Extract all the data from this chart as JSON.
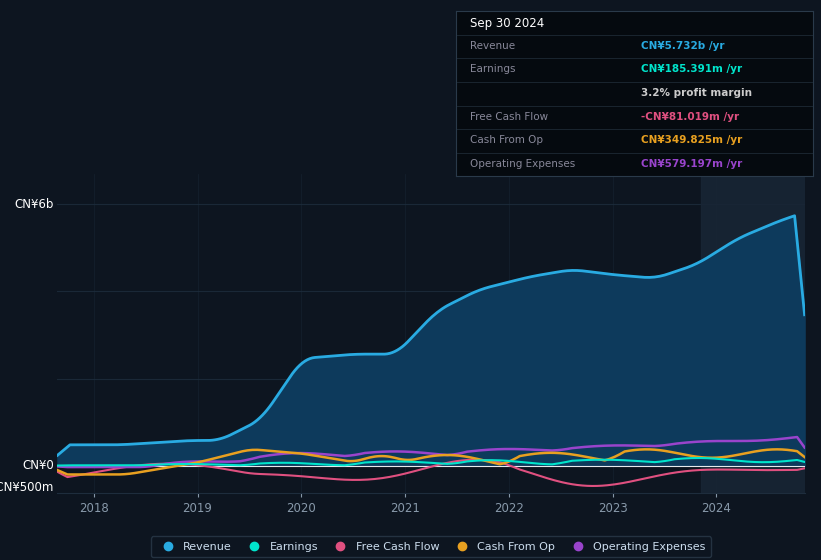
{
  "background_color": "#0d1520",
  "plot_bg_color": "#0d1520",
  "revenue_color": "#29abe2",
  "revenue_fill": "#0d3a5c",
  "earnings_color": "#00e5cc",
  "fcf_color": "#e05080",
  "cashfromop_color": "#e8a020",
  "opex_color": "#9944cc",
  "grid_color": "#1e2d3d",
  "zero_line_color": "#ffffff",
  "text_color": "#8899aa",
  "label_color": "#ccddee",
  "legend_labels": [
    "Revenue",
    "Earnings",
    "Free Cash Flow",
    "Cash From Op",
    "Operating Expenses"
  ],
  "info_box": {
    "date": "Sep 30 2024",
    "revenue_label": "Revenue",
    "revenue_val": "CN¥5.732b",
    "earnings_label": "Earnings",
    "earnings_val": "CN¥185.391m",
    "profit_margin": "3.2% profit margin",
    "fcf_label": "Free Cash Flow",
    "fcf_val": "-CN¥81.019m",
    "cashop_label": "Cash From Op",
    "cashop_val": "CN¥349.825m",
    "opex_label": "Operating Expenses",
    "opex_val": "CN¥579.197m"
  },
  "ylabel_top": "CN¥6b",
  "ylabel_zero": "CN¥0",
  "ylabel_neg": "-CN¥500m",
  "xticks": [
    2018,
    2019,
    2020,
    2021,
    2022,
    2023,
    2024
  ],
  "xlim": [
    2017.65,
    2024.85
  ],
  "ylim": [
    -620000000,
    6700000000
  ]
}
